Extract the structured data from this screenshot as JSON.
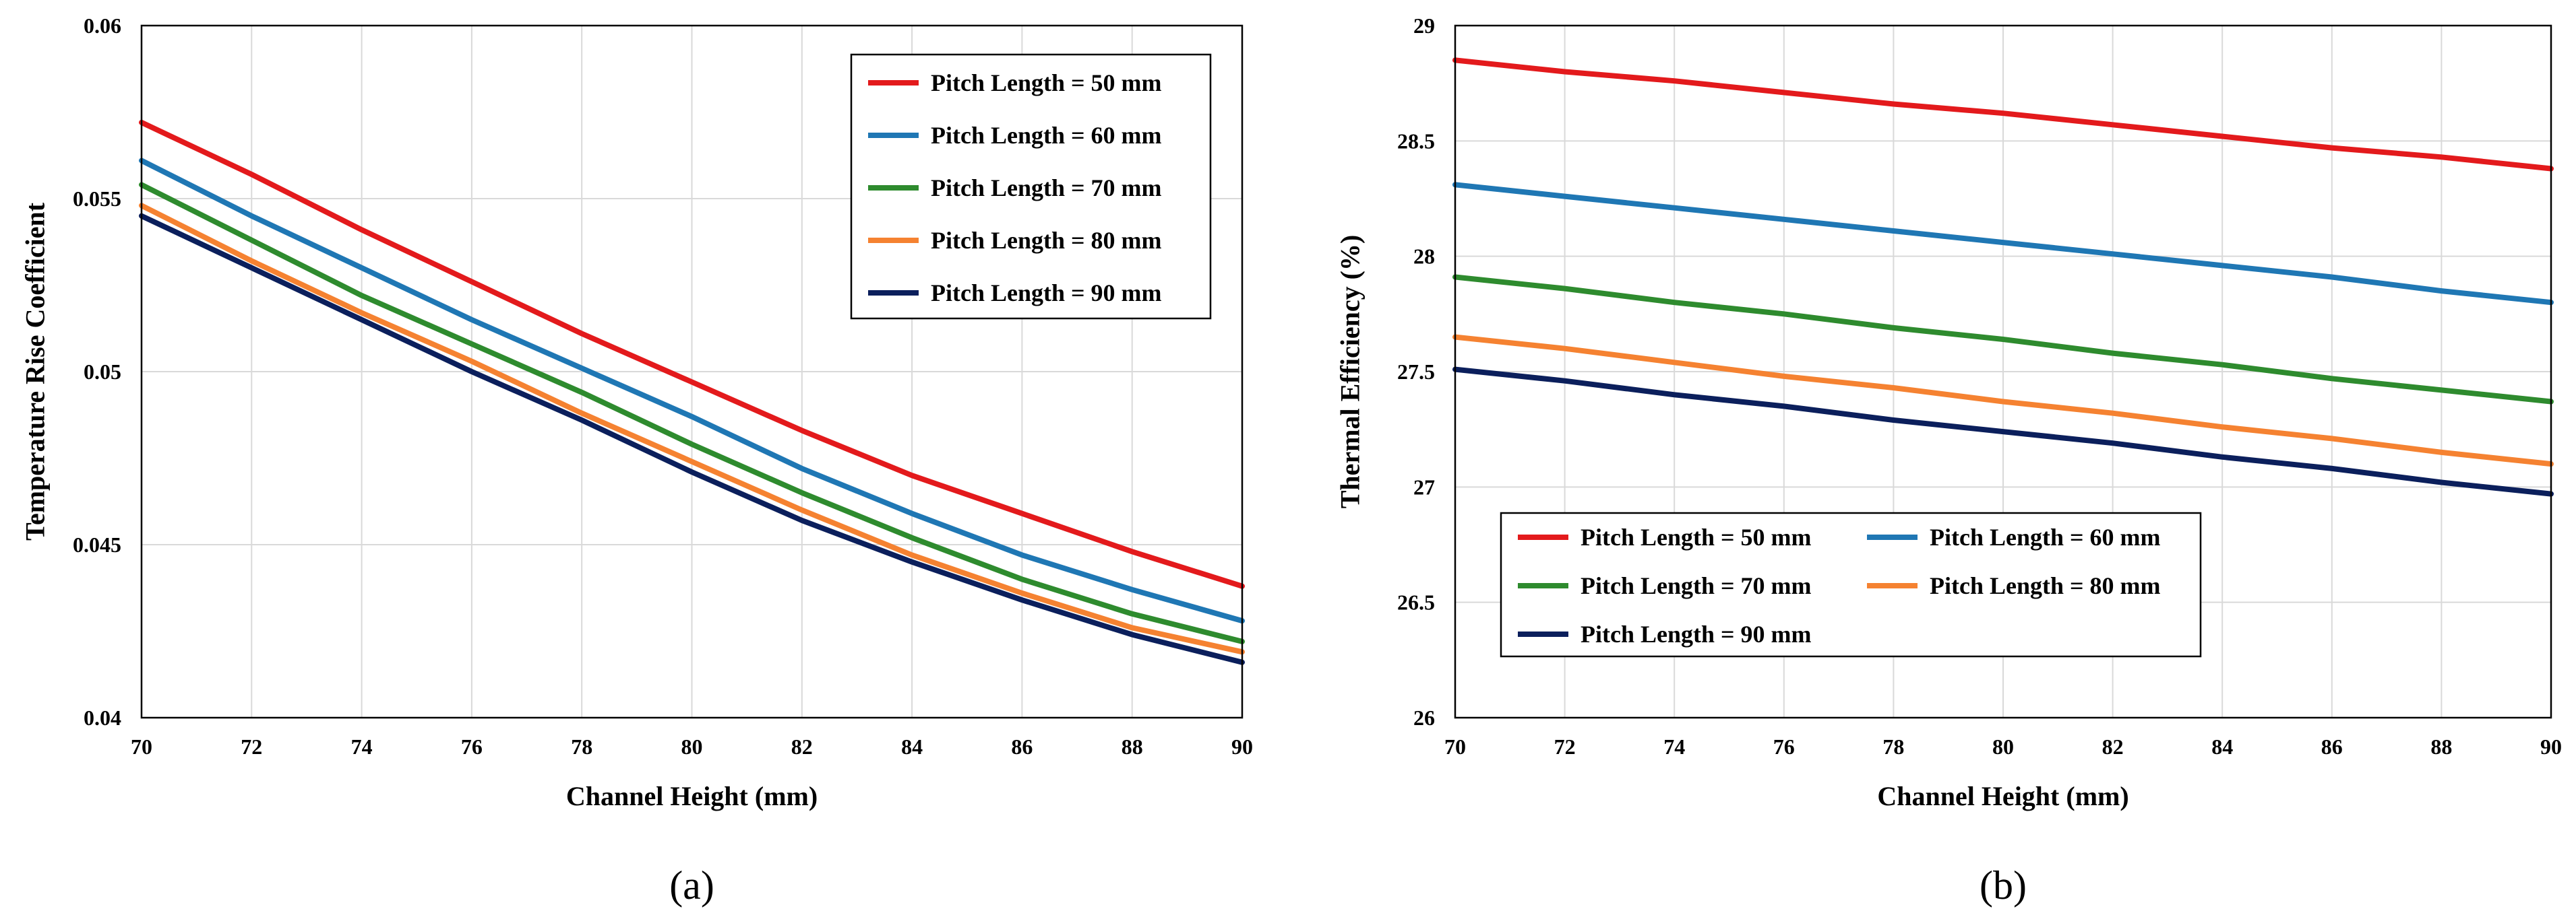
{
  "chart_data": [
    {
      "type": "line",
      "panel_label": "(a)",
      "title": "",
      "xlabel": "Channel Height (mm)",
      "ylabel": "Temperature Rise Coefficient",
      "xlim": [
        70,
        90
      ],
      "ylim": [
        0.04,
        0.06
      ],
      "xticks": [
        70,
        72,
        74,
        76,
        78,
        80,
        82,
        84,
        86,
        88,
        90
      ],
      "xtick_labels": [
        "70",
        "72",
        "74",
        "76",
        "78",
        "80",
        "82",
        "84",
        "86",
        "88",
        "90"
      ],
      "yticks": [
        0.04,
        0.045,
        0.05,
        0.055,
        0.06
      ],
      "ytick_labels": [
        "0.04",
        "0.045",
        "0.05",
        "0.055",
        "0.06"
      ],
      "grid": true,
      "legend_position": "top-right",
      "legend_columns": 1,
      "x": [
        70,
        72,
        74,
        76,
        78,
        80,
        82,
        84,
        86,
        88,
        90
      ],
      "series": [
        {
          "name": "Pitch Length = 50 mm",
          "color": "#e31a1c",
          "values": [
            0.0572,
            0.0557,
            0.0541,
            0.0526,
            0.0511,
            0.0497,
            0.0483,
            0.047,
            0.0459,
            0.0448,
            0.0438
          ]
        },
        {
          "name": "Pitch Length = 60 mm",
          "color": "#1f77b4",
          "values": [
            0.0561,
            0.0545,
            0.053,
            0.0515,
            0.0501,
            0.0487,
            0.0472,
            0.0459,
            0.0447,
            0.0437,
            0.0428
          ]
        },
        {
          "name": "Pitch Length = 70 mm",
          "color": "#2e8b2e",
          "values": [
            0.0554,
            0.0538,
            0.0522,
            0.0508,
            0.0494,
            0.0479,
            0.0465,
            0.0452,
            0.044,
            0.043,
            0.0422
          ]
        },
        {
          "name": "Pitch Length = 80 mm",
          "color": "#f58231",
          "values": [
            0.0548,
            0.0532,
            0.0517,
            0.0503,
            0.0488,
            0.0474,
            0.046,
            0.0447,
            0.0436,
            0.0426,
            0.0419
          ]
        },
        {
          "name": "Pitch Length = 90 mm",
          "color": "#0b1f5c",
          "values": [
            0.0545,
            0.053,
            0.0515,
            0.05,
            0.0486,
            0.0471,
            0.0457,
            0.0445,
            0.0434,
            0.0424,
            0.0416
          ]
        }
      ]
    },
    {
      "type": "line",
      "panel_label": "(b)",
      "title": "",
      "xlabel": "Channel Height (mm)",
      "ylabel": "Thermal Efficiency (%)",
      "xlim": [
        70,
        90
      ],
      "ylim": [
        26,
        29
      ],
      "xticks": [
        70,
        72,
        74,
        76,
        78,
        80,
        82,
        84,
        86,
        88,
        90
      ],
      "xtick_labels": [
        "70",
        "72",
        "74",
        "76",
        "78",
        "80",
        "82",
        "84",
        "86",
        "88",
        "90"
      ],
      "yticks": [
        26,
        26.5,
        27,
        27.5,
        28,
        28.5,
        29
      ],
      "ytick_labels": [
        "26",
        "26.5",
        "27",
        "27.5",
        "28",
        "28.5",
        "29"
      ],
      "grid": true,
      "legend_position": "bottom-left",
      "legend_columns": 2,
      "x": [
        70,
        72,
        74,
        76,
        78,
        80,
        82,
        84,
        86,
        88,
        90
      ],
      "series": [
        {
          "name": "Pitch Length = 50 mm",
          "color": "#e31a1c",
          "values": [
            28.85,
            28.8,
            28.76,
            28.71,
            28.66,
            28.62,
            28.57,
            28.52,
            28.47,
            28.43,
            28.38
          ]
        },
        {
          "name": "Pitch Length = 60 mm",
          "color": "#1f77b4",
          "values": [
            28.31,
            28.26,
            28.21,
            28.16,
            28.11,
            28.06,
            28.01,
            27.96,
            27.91,
            27.85,
            27.8
          ]
        },
        {
          "name": "Pitch Length = 70 mm",
          "color": "#2e8b2e",
          "values": [
            27.91,
            27.86,
            27.8,
            27.75,
            27.69,
            27.64,
            27.58,
            27.53,
            27.47,
            27.42,
            27.37
          ]
        },
        {
          "name": "Pitch Length = 80 mm",
          "color": "#f58231",
          "values": [
            27.65,
            27.6,
            27.54,
            27.48,
            27.43,
            27.37,
            27.32,
            27.26,
            27.21,
            27.15,
            27.1
          ]
        },
        {
          "name": "Pitch Length = 90 mm",
          "color": "#0b1f5c",
          "values": [
            27.51,
            27.46,
            27.4,
            27.35,
            27.29,
            27.24,
            27.19,
            27.13,
            27.08,
            27.02,
            26.97
          ]
        }
      ]
    }
  ]
}
